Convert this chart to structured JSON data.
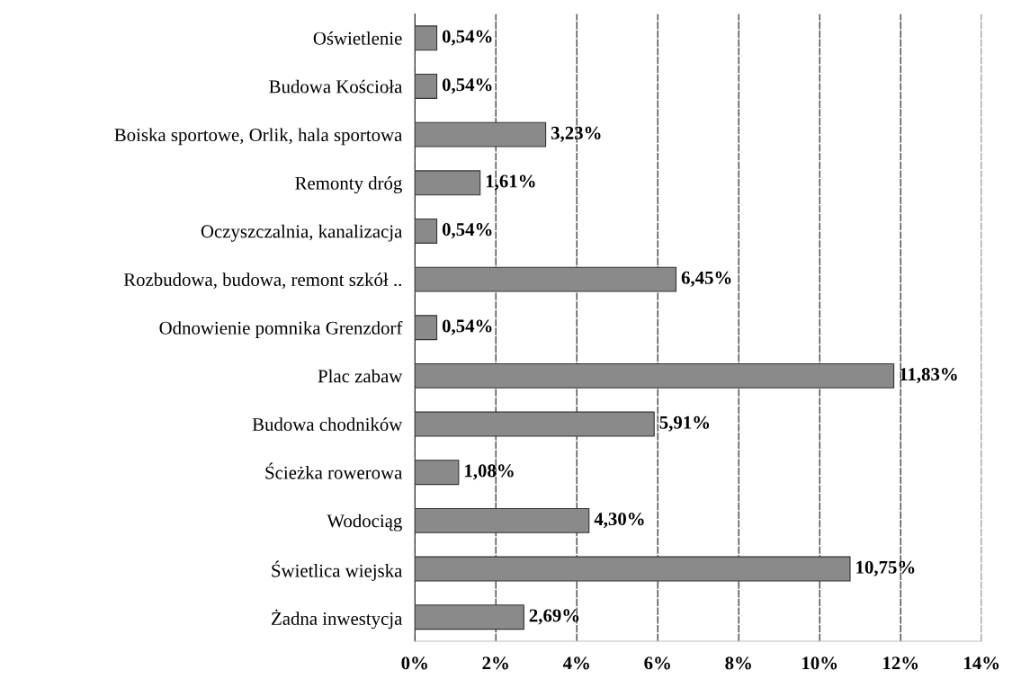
{
  "chart_data": {
    "type": "bar",
    "orientation": "horizontal",
    "categories": [
      "Oświetlenie",
      "Budowa Kościoła",
      "Boiska sportowe, Orlik, hala sportowa",
      "Remonty dróg",
      "Oczyszczalnia, kanalizacja",
      "Rozbudowa, budowa, remont szkół ..",
      "Odnowienie pomnika Grenzdorf",
      "Plac zabaw",
      "Budowa chodników",
      "Ścieżka rowerowa",
      "Wodociąg",
      "Świetlica wiejska",
      "Żadna inwestycja"
    ],
    "values": [
      0.54,
      0.54,
      3.23,
      1.61,
      0.54,
      6.45,
      0.54,
      11.83,
      5.91,
      1.08,
      4.3,
      10.75,
      2.69
    ],
    "value_labels": [
      "0,54%",
      "0,54%",
      "3,23%",
      "1,61%",
      "0,54%",
      "6,45%",
      "0,54%",
      "11,83%",
      "5,91%",
      "1,08%",
      "4,30%",
      "10,75%",
      "2,69%"
    ],
    "color": "#8a8a8a",
    "xlim": [
      0,
      14
    ],
    "xticks": [
      {
        "value": 0,
        "label": "0%"
      },
      {
        "value": 2,
        "label": "2%"
      },
      {
        "value": 4,
        "label": "4%"
      },
      {
        "value": 6,
        "label": "6%"
      },
      {
        "value": 8,
        "label": "8%"
      },
      {
        "value": 10,
        "label": "10%"
      },
      {
        "value": 12,
        "label": "12%"
      },
      {
        "value": 14,
        "label": "14%"
      }
    ],
    "grid": "x"
  }
}
